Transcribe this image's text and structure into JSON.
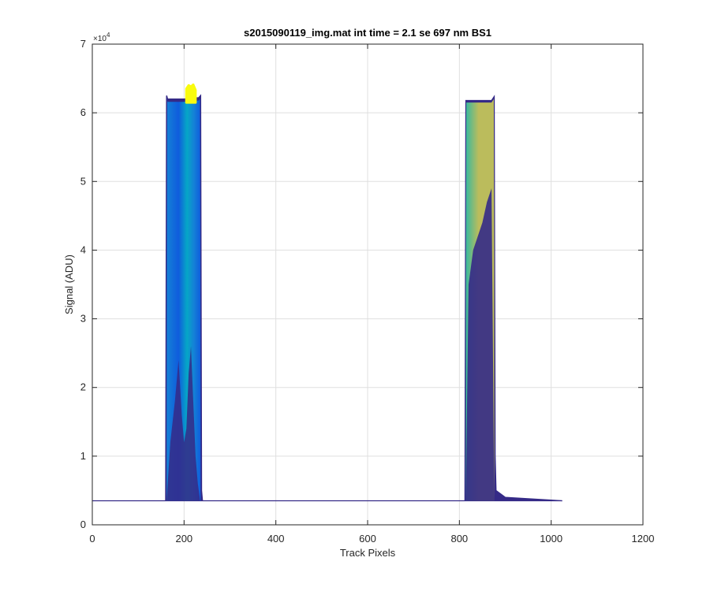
{
  "chart_data": {
    "type": "area",
    "title": "s2015090119_img.mat int time = 2.1 se  697 nm BS1",
    "xlabel": "Track Pixels",
    "ylabel": "Signal (ADU)",
    "xlim": [
      0,
      1200
    ],
    "ylim": [
      0,
      70000
    ],
    "xticks": [
      0,
      200,
      400,
      600,
      800,
      1000,
      1200
    ],
    "yticks": [
      0,
      10000,
      20000,
      30000,
      40000,
      50000,
      60000,
      70000
    ],
    "xtick_labels": [
      "0",
      "200",
      "400",
      "600",
      "800",
      "1000",
      "1200"
    ],
    "ytick_labels": [
      "0",
      "1",
      "2",
      "3",
      "4",
      "5",
      "6",
      "7"
    ],
    "y_multiplier_base": "×10",
    "y_multiplier_exp": "4",
    "grid": true,
    "baseline": 3500,
    "x_data_max": 1024,
    "colors": {
      "dark_navy": "#352a87",
      "mid_blue": "#0f5cdd",
      "light_blue": "#1481d6",
      "cyan": "#06a7c6",
      "teal": "#38b99e",
      "olive": "#bbbc5c",
      "yellow": "#f9fb0e",
      "axis": "#262626",
      "grid": "#dfdfdf"
    },
    "series": [
      {
        "region": "left",
        "layer": "envelope",
        "x": [
          160,
          162,
          164,
          200,
          232,
          236,
          238,
          240
        ],
        "y": [
          3500,
          62500,
          62000,
          62000,
          62200,
          62500,
          5000,
          3500
        ]
      },
      {
        "region": "left",
        "layer": "peak",
        "x": [
          205,
          210,
          215,
          220,
          225
        ],
        "y": [
          63500,
          64000,
          63800,
          64100,
          63300
        ]
      },
      {
        "region": "left",
        "layer": "inner-dark",
        "x": [
          162,
          170,
          180,
          188,
          195,
          200,
          205,
          210,
          215,
          220,
          225,
          230,
          235
        ],
        "y": [
          3500,
          12000,
          18000,
          24000,
          16000,
          12000,
          14000,
          22000,
          26000,
          18000,
          10000,
          6000,
          3500
        ]
      },
      {
        "region": "right",
        "layer": "envelope",
        "x": [
          812,
          814,
          816,
          870,
          876,
          878,
          880,
          900,
          1000,
          1024
        ],
        "y": [
          3500,
          61800,
          61800,
          61800,
          62400,
          10000,
          5000,
          4000,
          3600,
          3500
        ]
      },
      {
        "region": "right",
        "layer": "inner",
        "x": [
          814,
          820,
          830,
          840,
          850,
          860,
          870,
          876
        ],
        "y": [
          3500,
          35000,
          40000,
          42000,
          44000,
          47000,
          49000,
          3500
        ]
      }
    ]
  }
}
